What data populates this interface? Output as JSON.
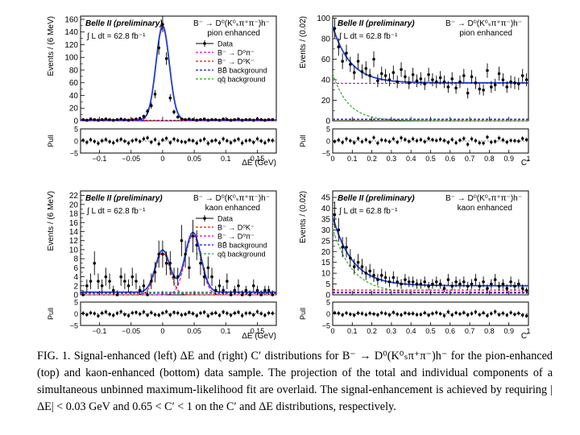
{
  "caption": "FIG. 1. Signal-enhanced (left) ΔE and (right) C′ distributions for B⁻ → D⁰(K⁰ₛπ⁺π⁻)h⁻ for the pion-enhanced (top) and kaon-enhanced (bottom) data sample. The projection of the total and individual components of a simultaneous unbinned maximum-likelihood fit are overlaid. The signal-enhancement is achieved by requiring |ΔE| < 0.03 GeV and 0.65 < C′ < 1 on the C′ and ΔE distributions, respectively.",
  "colors": {
    "data": "#000000",
    "total_fit": "#1f3fd0",
    "b_to_dpi": "#d200d2",
    "b_to_dk": "#e01010",
    "bbbar": "#1010d0",
    "qqbar": "#20a020"
  },
  "chart_data": [
    {
      "type": "scatter",
      "panel": "top-left",
      "experiment": "Belle II (preliminary)",
      "luminosity": "∫ L dt = 62.8 fb⁻¹",
      "process": "B⁻ → D⁰(K⁰ₛπ⁺π⁻)h⁻",
      "selection": "pion enhanced",
      "xlabel": "ΔE (GeV)",
      "ylabel": "Events / (6 MeV)",
      "xlim": [
        -0.13,
        0.18
      ],
      "ylim": [
        0,
        165
      ],
      "xticks": [
        -0.1,
        -0.05,
        0,
        0.05,
        0.1,
        0.15
      ],
      "xtick_labels": [
        "−0.1",
        "−0.05",
        "0",
        "0.05",
        "0.1",
        "0.15"
      ],
      "yticks": [
        0,
        20,
        40,
        60,
        80,
        100,
        120,
        140,
        160
      ],
      "legend_position": "top-right",
      "legend": [
        "Data",
        "B⁻ → D⁰π⁻",
        "B⁻ → D⁰K⁻",
        "BB̄ background",
        "qq̄ background"
      ],
      "data": {
        "x": [
          -0.126,
          -0.12,
          -0.114,
          -0.108,
          -0.102,
          -0.096,
          -0.09,
          -0.084,
          -0.078,
          -0.072,
          -0.066,
          -0.06,
          -0.054,
          -0.048,
          -0.042,
          -0.036,
          -0.03,
          -0.024,
          -0.018,
          -0.012,
          -0.006,
          0.0,
          0.006,
          0.012,
          0.018,
          0.024,
          0.03,
          0.036,
          0.042,
          0.048,
          0.054,
          0.06,
          0.066,
          0.072,
          0.078,
          0.084,
          0.09,
          0.096,
          0.102,
          0.108,
          0.114,
          0.12,
          0.126,
          0.132,
          0.138,
          0.144,
          0.15,
          0.156,
          0.162,
          0.168,
          0.174
        ],
        "y": [
          2,
          1,
          3,
          2,
          1,
          2,
          3,
          2,
          1,
          2,
          3,
          2,
          1,
          2,
          3,
          4,
          7,
          15,
          24,
          42,
          115,
          152,
          98,
          36,
          14,
          6,
          3,
          2,
          3,
          2,
          1,
          2,
          3,
          1,
          2,
          2,
          1,
          3,
          2,
          1,
          2,
          3,
          1,
          2,
          2,
          1,
          3,
          2,
          1,
          2,
          2
        ]
      },
      "pull": {
        "ylim": [
          -5,
          5
        ],
        "yticks": [
          -5,
          0,
          5
        ],
        "values": [
          0.3,
          -0.6,
          0.5,
          -0.2,
          -1.0,
          0.1,
          0.6,
          -0.3,
          -0.8,
          0.2,
          0.7,
          -0.1,
          -0.9,
          0.1,
          0.5,
          -0.2,
          0.9,
          1.3,
          -0.5,
          0.6,
          -1.2,
          0.4,
          1.1,
          -0.7,
          0.8,
          0.2,
          -0.3,
          -0.5,
          0.4,
          0.1,
          -0.9,
          0.2,
          0.8,
          -1.0,
          0.0,
          0.3,
          -0.8,
          0.9,
          0.1,
          -0.7,
          0.2,
          0.8,
          -0.9,
          0.1,
          0.3,
          -0.6,
          0.9,
          0.0,
          -0.8,
          0.3,
          0.2
        ]
      }
    },
    {
      "type": "scatter",
      "panel": "top-right",
      "experiment": "Belle II (preliminary)",
      "luminosity": "∫ L dt = 62.8 fb⁻¹",
      "process": "B⁻ → D⁰(K⁰ₛπ⁺π⁻)h⁻",
      "selection": "pion enhanced",
      "xlabel": "C′",
      "ylabel": "Events / (0.02)",
      "xlim": [
        0,
        1
      ],
      "ylim": [
        0,
        102
      ],
      "xticks": [
        0,
        0.1,
        0.2,
        0.3,
        0.4,
        0.5,
        0.6,
        0.7,
        0.8,
        0.9,
        1
      ],
      "xtick_labels": [
        "0",
        "0.1",
        "0.2",
        "0.3",
        "0.4",
        "0.5",
        "0.6",
        "0.7",
        "0.8",
        "0.9",
        "1"
      ],
      "yticks": [
        0,
        20,
        40,
        60,
        80,
        100
      ],
      "data": {
        "x": [
          0.01,
          0.03,
          0.05,
          0.07,
          0.09,
          0.11,
          0.13,
          0.15,
          0.17,
          0.19,
          0.21,
          0.23,
          0.25,
          0.27,
          0.29,
          0.31,
          0.33,
          0.35,
          0.37,
          0.39,
          0.41,
          0.43,
          0.45,
          0.47,
          0.49,
          0.51,
          0.53,
          0.55,
          0.57,
          0.59,
          0.61,
          0.63,
          0.65,
          0.67,
          0.69,
          0.71,
          0.73,
          0.75,
          0.77,
          0.79,
          0.81,
          0.83,
          0.85,
          0.87,
          0.89,
          0.91,
          0.93,
          0.95,
          0.97,
          0.99
        ],
        "y": [
          90,
          72,
          58,
          66,
          55,
          47,
          58,
          48,
          51,
          44,
          60,
          39,
          46,
          44,
          40,
          47,
          38,
          50,
          43,
          37,
          45,
          39,
          41,
          36,
          45,
          40,
          38,
          42,
          38,
          33,
          41,
          32,
          38,
          44,
          27,
          43,
          37,
          31,
          30,
          49,
          33,
          35,
          46,
          40,
          33,
          38,
          37,
          36,
          44,
          40
        ]
      },
      "pull": {
        "ylim": [
          -5,
          5
        ],
        "yticks": [
          -5,
          0,
          5
        ],
        "values": [
          -0.2,
          0.4,
          -0.6,
          0.9,
          0.1,
          -0.7,
          1.0,
          -0.3,
          0.5,
          -0.5,
          1.4,
          -0.9,
          0.4,
          0.2,
          -0.3,
          0.9,
          -0.5,
          1.3,
          0.6,
          -0.2,
          0.9,
          0.1,
          0.5,
          -0.3,
          1.0,
          0.5,
          0.2,
          0.7,
          0.2,
          -0.6,
          0.6,
          -0.8,
          0.3,
          1.0,
          -1.4,
          0.9,
          0.1,
          -0.8,
          -0.9,
          1.6,
          -0.5,
          -0.2,
          1.2,
          0.4,
          -0.5,
          0.2,
          0.1,
          -0.1,
          1.0,
          0.5
        ]
      }
    },
    {
      "type": "scatter",
      "panel": "bottom-left",
      "experiment": "Belle II (preliminary)",
      "luminosity": "∫ L dt = 62.8 fb⁻¹",
      "process": "B⁻ → D⁰(K⁰ₛπ⁺π⁻)h⁻",
      "selection": "kaon enhanced",
      "xlabel": "ΔE (GeV)",
      "ylabel": "Events / (6 MeV)",
      "xlim": [
        -0.13,
        0.18
      ],
      "ylim": [
        0,
        23
      ],
      "xticks": [
        -0.1,
        -0.05,
        0,
        0.05,
        0.1,
        0.15
      ],
      "xtick_labels": [
        "−0.1",
        "−0.05",
        "0",
        "0.05",
        "0.1",
        "0.15"
      ],
      "yticks": [
        0,
        2,
        4,
        6,
        8,
        10,
        12,
        14,
        16,
        18,
        20,
        22
      ],
      "legend_position": "top-right",
      "legend": [
        "Data",
        "B⁻ → D⁰K⁻",
        "B⁻ → D⁰π⁻",
        "BB̄ background",
        "qq̄ background"
      ],
      "data": {
        "x": [
          -0.126,
          -0.12,
          -0.114,
          -0.108,
          -0.102,
          -0.096,
          -0.09,
          -0.084,
          -0.078,
          -0.072,
          -0.066,
          -0.06,
          -0.054,
          -0.048,
          -0.042,
          -0.036,
          -0.03,
          -0.024,
          -0.018,
          -0.012,
          -0.006,
          0.0,
          0.006,
          0.012,
          0.018,
          0.024,
          0.03,
          0.036,
          0.042,
          0.048,
          0.054,
          0.06,
          0.066,
          0.072,
          0.078,
          0.084,
          0.09,
          0.096,
          0.102,
          0.108,
          0.114,
          0.12,
          0.126,
          0.132,
          0.138,
          0.144,
          0.15,
          0.156,
          0.162,
          0.168,
          0.174
        ],
        "y": [
          0,
          2,
          3,
          7,
          3,
          2,
          4,
          3,
          1,
          0,
          4,
          3,
          2,
          4,
          3,
          1,
          2,
          0,
          3,
          5,
          9,
          9,
          7,
          7,
          4,
          4,
          12,
          9,
          6,
          13,
          11,
          7,
          4,
          6,
          4,
          1,
          2,
          1,
          3,
          0,
          1,
          2,
          0,
          1,
          0,
          2,
          1,
          0,
          1,
          1,
          0
        ]
      },
      "pull": {
        "ylim": [
          -5,
          5
        ],
        "yticks": [
          -5,
          0,
          5
        ],
        "values": [
          0.2,
          -0.4,
          0.4,
          0.1,
          -0.9,
          0.3,
          0.8,
          -0.2,
          -0.7,
          0.2,
          0.9,
          -0.3,
          -0.8,
          0.4,
          0.6,
          -0.1,
          0.8,
          -0.6,
          0.5,
          -0.4,
          -0.6,
          0.3,
          0.9,
          -0.5,
          0.6,
          0.3,
          -0.5,
          -0.2,
          0.6,
          0.1,
          -0.8,
          0.3,
          0.7,
          -0.9,
          0.1,
          0.4,
          -0.7,
          0.8,
          0.2,
          -0.6,
          0.3,
          0.7,
          -0.8,
          0.2,
          0.3,
          -0.5,
          0.9,
          0.1,
          -0.7,
          0.3,
          0.2
        ]
      }
    },
    {
      "type": "scatter",
      "panel": "bottom-right",
      "experiment": "Belle II (preliminary)",
      "luminosity": "∫ L dt = 62.8 fb⁻¹",
      "process": "B⁻ → D⁰(K⁰ₛπ⁺π⁻)h⁻",
      "selection": "kaon enhanced",
      "xlabel": "C′",
      "ylabel": "Events / (0.02)",
      "xlim": [
        0,
        1
      ],
      "ylim": [
        0,
        48
      ],
      "xticks": [
        0,
        0.1,
        0.2,
        0.3,
        0.4,
        0.5,
        0.6,
        0.7,
        0.8,
        0.9,
        1
      ],
      "xtick_labels": [
        "0",
        "0.1",
        "0.2",
        "0.3",
        "0.4",
        "0.5",
        "0.6",
        "0.7",
        "0.8",
        "0.9",
        "1"
      ],
      "yticks": [
        0,
        5,
        10,
        15,
        20,
        25,
        30,
        35,
        40,
        45
      ],
      "data": {
        "x": [
          0.01,
          0.03,
          0.05,
          0.07,
          0.09,
          0.11,
          0.13,
          0.15,
          0.17,
          0.19,
          0.21,
          0.23,
          0.25,
          0.27,
          0.29,
          0.31,
          0.33,
          0.35,
          0.37,
          0.39,
          0.41,
          0.43,
          0.45,
          0.47,
          0.49,
          0.51,
          0.53,
          0.55,
          0.57,
          0.59,
          0.61,
          0.63,
          0.65,
          0.67,
          0.69,
          0.71,
          0.73,
          0.75,
          0.77,
          0.79,
          0.81,
          0.83,
          0.85,
          0.87,
          0.89,
          0.91,
          0.93,
          0.95,
          0.97,
          0.99
        ],
        "y": [
          37,
          30,
          22,
          22,
          17,
          13,
          15,
          13,
          10,
          11,
          9,
          7,
          9,
          8,
          6,
          8,
          6,
          5,
          7,
          6,
          6,
          5,
          5,
          6,
          4,
          5,
          6,
          5,
          3,
          7,
          4,
          6,
          5,
          6,
          4,
          5,
          7,
          4,
          6,
          3,
          5,
          7,
          4,
          5,
          3,
          6,
          4,
          5,
          3,
          2
        ]
      },
      "pull": {
        "ylim": [
          -5,
          5
        ],
        "yticks": [
          -5,
          0,
          5
        ],
        "values": [
          0.4,
          0.2,
          -0.5,
          0.3,
          -0.2,
          -0.6,
          0.3,
          0.1,
          -0.4,
          0.2,
          -0.1,
          -0.5,
          0.4,
          0.1,
          -0.5,
          0.6,
          -0.2,
          -0.5,
          0.3,
          0.0,
          0.1,
          -0.4,
          -0.3,
          0.4,
          -0.6,
          0.1,
          0.5,
          0.0,
          -0.8,
          0.8,
          -0.5,
          0.4,
          -0.1,
          0.5,
          -0.5,
          0.1,
          0.8,
          -0.4,
          0.4,
          -0.8,
          0.1,
          0.9,
          -0.4,
          0.2,
          -0.6,
          0.5,
          -0.3,
          0.2,
          -0.6,
          -0.9
        ]
      }
    }
  ]
}
